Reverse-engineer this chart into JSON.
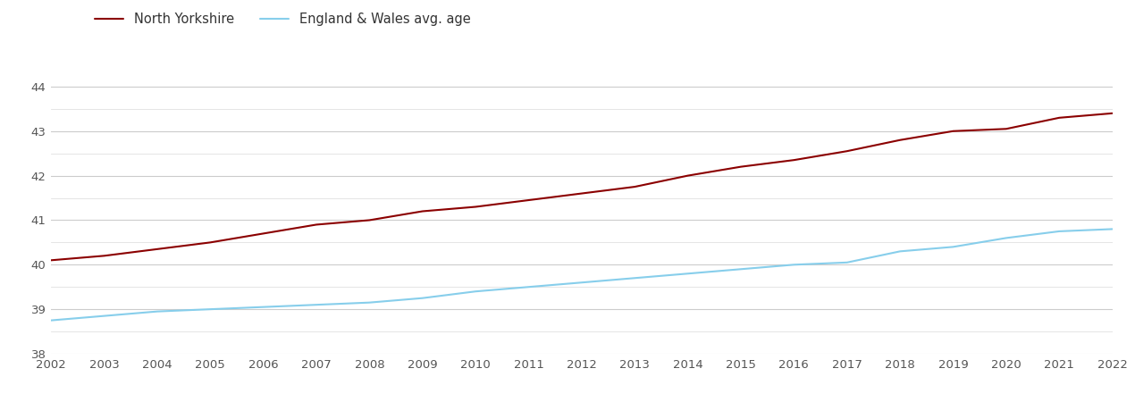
{
  "years": [
    2002,
    2003,
    2004,
    2005,
    2006,
    2007,
    2008,
    2009,
    2010,
    2011,
    2012,
    2013,
    2014,
    2015,
    2016,
    2017,
    2018,
    2019,
    2020,
    2021,
    2022
  ],
  "north_yorkshire": [
    40.1,
    40.2,
    40.35,
    40.5,
    40.7,
    40.9,
    41.0,
    41.2,
    41.3,
    41.45,
    41.6,
    41.75,
    42.0,
    42.2,
    42.35,
    42.55,
    42.8,
    43.0,
    43.05,
    43.3,
    43.4
  ],
  "england_wales": [
    38.75,
    38.85,
    38.95,
    39.0,
    39.05,
    39.1,
    39.15,
    39.25,
    39.4,
    39.5,
    39.6,
    39.7,
    39.8,
    39.9,
    40.0,
    40.05,
    40.3,
    40.4,
    40.6,
    40.75,
    40.8
  ],
  "ny_color": "#8b0000",
  "ew_color": "#87CEEB",
  "ny_label": "North Yorkshire",
  "ew_label": "England & Wales avg. age",
  "ylim": [
    38,
    44.5
  ],
  "yticks_major": [
    38,
    39,
    40,
    41,
    42,
    43,
    44
  ],
  "yticks_minor": [
    38.5,
    39.5,
    40.5,
    41.5,
    42.5,
    43.5
  ],
  "background_color": "#ffffff",
  "grid_color_major": "#cccccc",
  "grid_color_minor": "#e0e0e0",
  "line_width": 1.5,
  "tick_fontsize": 9.5,
  "legend_fontsize": 10.5
}
